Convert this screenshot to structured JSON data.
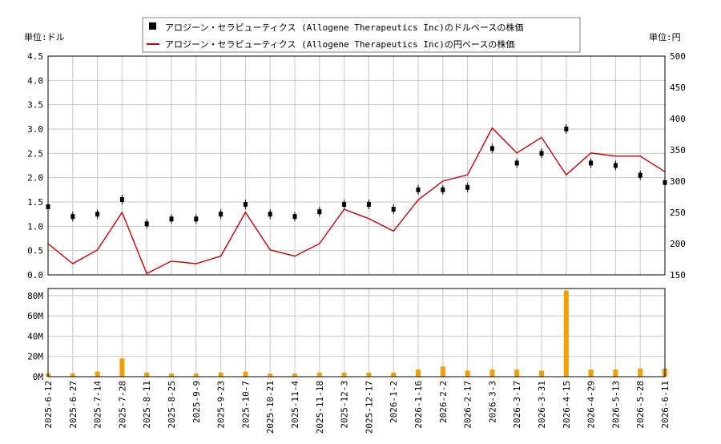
{
  "legend": {
    "usd_label": "アロジーン・セラピューティクス (Allogene Therapeutics Inc)のドルベースの株価",
    "jpy_label": "アロジーン・セラピューティクス (Allogene Therapeutics Inc)の円ベースの株価"
  },
  "units": {
    "left": "単位:ドル",
    "right": "単位:円"
  },
  "colors": {
    "usd_candles": "#000000",
    "jpy_line": "#cc0000",
    "volume": "#f0a000",
    "grid": "#c8c8c8"
  },
  "chart_data": [
    {
      "type": "line",
      "series": [
        {
          "name": "アロジーン・セラピューティクス (Allogene Therapeutics Inc)のドルベースの株価",
          "axis": "left",
          "style": "candlestick"
        },
        {
          "name": "アロジーン・セラピューティクス (Allogene Therapeutics Inc)の円ベースの株価",
          "axis": "right",
          "style": "line"
        }
      ],
      "x": [
        "2025-06-12",
        "2025-06-27",
        "2025-07-14",
        "2025-07-28",
        "2025-08-11",
        "2025-08-25",
        "2025-09-09",
        "2025-09-23",
        "2025-10-07",
        "2025-10-21",
        "2025-11-04",
        "2025-11-18",
        "2025-12-03",
        "2025-12-17",
        "2026-01-02",
        "2026-01-16",
        "2026-02-02",
        "2026-02-17",
        "2026-03-03",
        "2026-03-17",
        "2026-03-31",
        "2026-04-15",
        "2026-04-29",
        "2026-05-13",
        "2026-05-28",
        "2026-06-11"
      ],
      "usd_values": [
        1.4,
        1.2,
        1.25,
        1.55,
        1.05,
        1.15,
        1.15,
        1.25,
        1.45,
        1.25,
        1.2,
        1.3,
        1.45,
        1.45,
        1.35,
        1.75,
        1.75,
        1.8,
        2.6,
        2.3,
        2.5,
        3.0,
        2.3,
        2.25,
        2.05,
        1.9
      ],
      "jpy_values": [
        200,
        168,
        190,
        250,
        152,
        172,
        168,
        180,
        250,
        190,
        180,
        200,
        255,
        240,
        220,
        270,
        300,
        310,
        385,
        345,
        370,
        310,
        345,
        340,
        340,
        315
      ],
      "xtick_labels": [
        "2025-6-12",
        "2025-6-27",
        "2025-7-14",
        "2025-7-28",
        "2025-8-11",
        "2025-8-25",
        "2025-9-9",
        "2025-9-23",
        "2025-10-7",
        "2025-10-21",
        "2025-11-4",
        "2025-11-18",
        "2025-12-3",
        "2025-12-17",
        "2026-1-2",
        "2026-1-16",
        "2026-2-2",
        "2026-2-17",
        "2026-3-3",
        "2026-3-17",
        "2026-3-31",
        "2026-4-15",
        "2026-4-29",
        "2026-5-13",
        "2026-5-28",
        "2026-6-11"
      ],
      "ylim_left": [
        0,
        4.5
      ],
      "ylim_right": [
        150,
        500
      ],
      "yticks_left": [
        "0.0",
        "0.5",
        "1.0",
        "1.5",
        "2.0",
        "2.5",
        "3.0",
        "3.5",
        "4.0",
        "4.5"
      ],
      "yticks_right": [
        "150",
        "200",
        "250",
        "300",
        "350",
        "400",
        "450",
        "500"
      ],
      "grid": true,
      "legend_position": "top-center"
    },
    {
      "type": "bar",
      "categories": [
        "2025-06-12",
        "2025-06-27",
        "2025-07-14",
        "2025-07-28",
        "2025-08-11",
        "2025-08-25",
        "2025-09-09",
        "2025-09-23",
        "2025-10-07",
        "2025-10-21",
        "2025-11-04",
        "2025-11-18",
        "2025-12-03",
        "2025-12-17",
        "2026-01-02",
        "2026-01-16",
        "2026-02-02",
        "2026-02-17",
        "2026-03-03",
        "2026-03-17",
        "2026-03-31",
        "2026-04-15",
        "2026-04-29",
        "2026-05-13",
        "2026-05-28",
        "2026-06-11"
      ],
      "values": [
        3,
        3,
        5,
        18,
        4,
        3,
        3,
        4,
        5,
        3,
        3,
        4,
        4,
        4,
        4,
        7,
        10,
        6,
        7,
        7,
        6,
        85,
        7,
        7,
        8,
        8
      ],
      "unit": "M",
      "ylim": [
        0,
        87
      ],
      "yticks": [
        "0M",
        "20M",
        "40M",
        "60M",
        "80M"
      ],
      "grid": true
    }
  ]
}
